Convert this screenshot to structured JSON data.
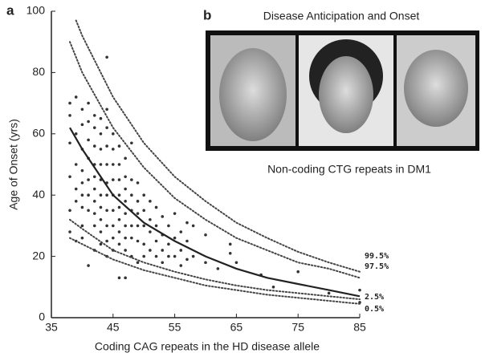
{
  "chart_data": {
    "type": "scatter",
    "panel_a": "a",
    "panel_b": "b",
    "inset_title": "Disease Anticipation and Onset",
    "inset_caption": "Non-coding CTG repeats in DM1",
    "x_label": "Coding CAG repeats in the HD disease allele",
    "y_label": "Age of Onset (yrs)",
    "xlim": [
      35,
      85
    ],
    "ylim": [
      0,
      100
    ],
    "xticks": [
      35,
      45,
      55,
      65,
      75,
      85
    ],
    "yticks": [
      0,
      20,
      40,
      60,
      80,
      100
    ],
    "series": [
      {
        "mode": "markers",
        "color": "#333333",
        "x": [
          38,
          38,
          38,
          38,
          38,
          38,
          39,
          39,
          39,
          39,
          39,
          39,
          40,
          40,
          40,
          40,
          40,
          40,
          40,
          40,
          40,
          41,
          41,
          41,
          41,
          41,
          41,
          41,
          41,
          42,
          42,
          42,
          42,
          42,
          42,
          42,
          42,
          42,
          42,
          43,
          43,
          43,
          43,
          43,
          43,
          43,
          43,
          43,
          43,
          44,
          44,
          44,
          44,
          44,
          44,
          44,
          44,
          44,
          44,
          44,
          45,
          45,
          45,
          45,
          45,
          45,
          45,
          45,
          45,
          46,
          46,
          46,
          46,
          46,
          46,
          46,
          46,
          46,
          47,
          47,
          47,
          47,
          47,
          47,
          47,
          47,
          47,
          48,
          48,
          48,
          48,
          48,
          48,
          48,
          49,
          49,
          49,
          49,
          49,
          49,
          50,
          50,
          50,
          50,
          50,
          51,
          51,
          51,
          51,
          52,
          52,
          52,
          52,
          53,
          53,
          53,
          53,
          54,
          54,
          54,
          55,
          55,
          55,
          56,
          56,
          56,
          57,
          57,
          57,
          58,
          58,
          60,
          60,
          62,
          64,
          64,
          65,
          69,
          71,
          75,
          80,
          85,
          85
        ],
        "values": [
          70,
          66,
          57,
          46,
          35,
          28,
          72,
          60,
          50,
          42,
          38,
          25,
          68,
          63,
          55,
          48,
          44,
          40,
          36,
          30,
          26,
          70,
          64,
          58,
          52,
          45,
          40,
          35,
          17,
          66,
          62,
          56,
          50,
          46,
          42,
          38,
          34,
          30,
          22,
          65,
          60,
          55,
          50,
          45,
          40,
          36,
          32,
          28,
          24,
          85,
          68,
          62,
          56,
          50,
          44,
          40,
          35,
          30,
          25,
          20,
          60,
          55,
          50,
          45,
          40,
          35,
          30,
          26,
          22,
          56,
          50,
          45,
          40,
          36,
          32,
          28,
          24,
          13,
          52,
          46,
          42,
          38,
          34,
          30,
          26,
          22,
          13,
          57,
          45,
          40,
          35,
          30,
          26,
          20,
          44,
          38,
          34,
          30,
          25,
          18,
          40,
          35,
          30,
          24,
          20,
          38,
          32,
          28,
          22,
          36,
          30,
          25,
          20,
          33,
          27,
          22,
          18,
          30,
          24,
          20,
          34,
          26,
          20,
          28,
          22,
          17,
          31,
          25,
          19,
          30,
          20,
          27,
          18,
          16,
          24,
          21,
          18,
          14,
          10,
          15,
          8,
          9,
          5
        ]
      },
      {
        "mode": "line",
        "dash": false,
        "color": "#222222",
        "x": [
          38,
          40,
          45,
          50,
          55,
          60,
          65,
          70,
          75,
          80,
          85
        ],
        "values": [
          62,
          55,
          40,
          31,
          25,
          20,
          16,
          13,
          11,
          9,
          7
        ]
      },
      {
        "name": "99.5%",
        "mode": "line",
        "dash": true,
        "color": "#444444",
        "x": [
          39,
          40,
          45,
          50,
          55,
          60,
          65,
          70,
          75,
          80,
          85
        ],
        "values": [
          97,
          92,
          72,
          57,
          46,
          38,
          31,
          26,
          21.5,
          18,
          15
        ]
      },
      {
        "name": "97.5%",
        "mode": "line",
        "dash": true,
        "color": "#444444",
        "x": [
          38,
          40,
          45,
          50,
          55,
          60,
          65,
          70,
          75,
          80,
          85
        ],
        "values": [
          90,
          80,
          62,
          49,
          39,
          32,
          26,
          22,
          18,
          16,
          13
        ]
      },
      {
        "name": "2.5%",
        "mode": "line",
        "dash": true,
        "color": "#444444",
        "x": [
          38,
          40,
          45,
          50,
          55,
          60,
          65,
          70,
          75,
          80,
          85
        ],
        "values": [
          32,
          29,
          22,
          18,
          15,
          12.5,
          10.5,
          9,
          8,
          7,
          6
        ]
      },
      {
        "name": "0.5%",
        "mode": "line",
        "dash": true,
        "color": "#444444",
        "x": [
          38,
          40,
          45,
          50,
          55,
          60,
          65,
          70,
          75,
          80,
          85
        ],
        "values": [
          26,
          24,
          19,
          15.5,
          13,
          10.5,
          9,
          7.5,
          6.5,
          5.5,
          4.5
        ]
      }
    ]
  }
}
